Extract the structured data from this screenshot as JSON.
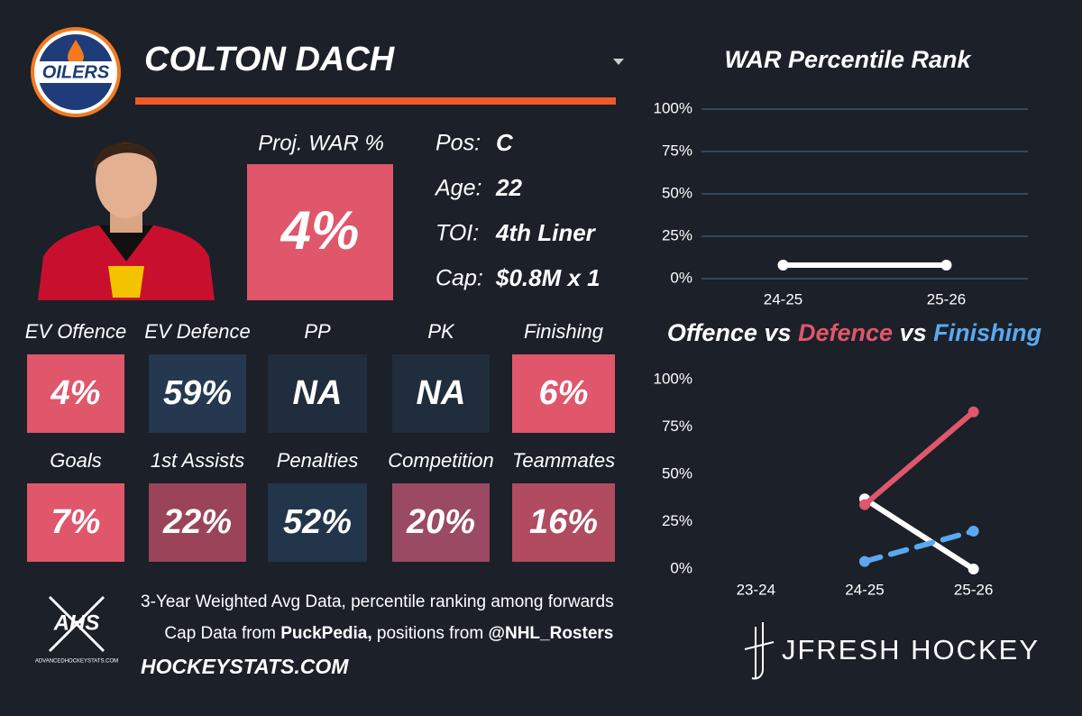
{
  "header": {
    "logo_text": "OILERS",
    "player_name": "COLTON DACH"
  },
  "projected_war": {
    "label": "Proj. WAR %",
    "value": "4%",
    "color": "#e0566b"
  },
  "info": [
    {
      "label": "Pos:",
      "value": "C"
    },
    {
      "label": "Age:",
      "value": "22"
    },
    {
      "label": "TOI:",
      "value": "4th Liner"
    },
    {
      "label": "Cap:",
      "value": "$0.8M x 1"
    }
  ],
  "tiles": [
    {
      "label": "EV Offence",
      "value": "4%",
      "color": "#e0566b"
    },
    {
      "label": "EV Defence",
      "value": "59%",
      "color": "#25384f"
    },
    {
      "label": "PP",
      "value": "NA",
      "color": "#1f2d3d"
    },
    {
      "label": "PK",
      "value": "NA",
      "color": "#1f2d3d"
    },
    {
      "label": "Finishing",
      "value": "6%",
      "color": "#e0566b"
    },
    {
      "label": "Goals",
      "value": "7%",
      "color": "#e0566b"
    },
    {
      "label": "1st Assists",
      "value": "22%",
      "color": "#9b4459"
    },
    {
      "label": "Penalties",
      "value": "52%",
      "color": "#23354b"
    },
    {
      "label": "Competition",
      "value": "20%",
      "color": "#9a4a62"
    },
    {
      "label": "Teammates",
      "value": "16%",
      "color": "#b04b60"
    }
  ],
  "footer": {
    "logo_text": "AHS",
    "logo_caption": "ADVANCEDHOCKEYSTATS.COM",
    "line1": "3-Year Weighted Avg Data, percentile ranking among forwards",
    "line2": [
      "Cap Data from ",
      "PuckPedia,",
      " positions from ",
      "@NHL_Rosters"
    ],
    "site": "HOCKEYSTATS.COM",
    "brand": "JFRESH HOCKEY"
  },
  "chart_data": [
    {
      "type": "line",
      "title": "WAR Percentile Rank",
      "categories": [
        "24-25",
        "25-26"
      ],
      "series": [
        {
          "color": "#ffffff",
          "values": [
            8,
            8
          ]
        }
      ],
      "ylim": [
        0,
        100
      ],
      "yticks": [
        {
          "value": 0,
          "label": "0%"
        },
        {
          "value": 25,
          "label": "25%"
        },
        {
          "value": 50,
          "label": "50%"
        },
        {
          "value": 75,
          "label": "75%"
        },
        {
          "value": 100,
          "label": "100%"
        }
      ],
      "grid": true
    },
    {
      "type": "line",
      "title_connector": "vs",
      "categories": [
        "23-24",
        "24-25",
        "25-26"
      ],
      "series": [
        {
          "name": "Offence",
          "color": "#ffffff",
          "values": [
            null,
            37,
            0
          ]
        },
        {
          "name": "Defence",
          "color": "#e0566b",
          "values": [
            null,
            34,
            83
          ]
        },
        {
          "name": "Finishing",
          "color": "#5aa9f0",
          "dashed": true,
          "values": [
            null,
            4,
            20
          ]
        }
      ],
      "ylim": [
        0,
        100
      ],
      "yticks": [
        {
          "value": 0,
          "label": "0%"
        },
        {
          "value": 25,
          "label": "25%"
        },
        {
          "value": 50,
          "label": "50%"
        },
        {
          "value": 75,
          "label": "75%"
        },
        {
          "value": 100,
          "label": "100%"
        }
      ],
      "grid": false
    }
  ]
}
